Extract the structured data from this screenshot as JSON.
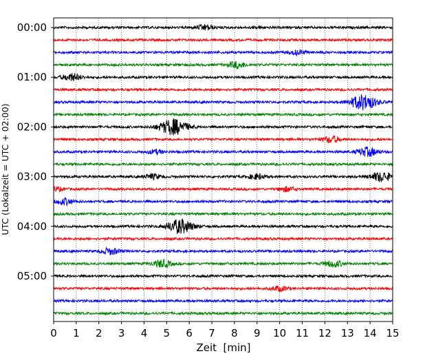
{
  "chart_data": {
    "type": "line",
    "title": "",
    "xlabel": "Zeit  [min]",
    "ylabel": "UTC (Lokalzeit = UTC + 02:00)",
    "xlim": [
      0,
      15
    ],
    "x_ticks": [
      "0",
      "1",
      "2",
      "3",
      "4",
      "5",
      "6",
      "7",
      "8",
      "9",
      "10",
      "11",
      "12",
      "13",
      "14",
      "15"
    ],
    "y_tick_labels": [
      "00:00",
      "01:00",
      "02:00",
      "03:00",
      "04:00",
      "05:00"
    ],
    "y_tick_rows": [
      0,
      4,
      8,
      12,
      16,
      20
    ],
    "grid": "vertical dotted",
    "trace_interval_minutes": 15,
    "traces_count": 24,
    "color_cycle": [
      "#000000",
      "#ff0000",
      "#0000ff",
      "#008000"
    ],
    "events": [
      {
        "row": 0,
        "t": 6.7,
        "amp": 0.32
      },
      {
        "row": 0,
        "t": 9.1,
        "amp": 0.1
      },
      {
        "row": 2,
        "t": 10.8,
        "amp": 0.26
      },
      {
        "row": 3,
        "t": 8.1,
        "amp": 0.4
      },
      {
        "row": 4,
        "t": 0.8,
        "amp": 0.45
      },
      {
        "row": 6,
        "t": 13.7,
        "amp": 0.95
      },
      {
        "row": 8,
        "t": 5.3,
        "amp": 1.0
      },
      {
        "row": 9,
        "t": 12.3,
        "amp": 0.4
      },
      {
        "row": 10,
        "t": 4.5,
        "amp": 0.25
      },
      {
        "row": 10,
        "t": 13.9,
        "amp": 0.55
      },
      {
        "row": 12,
        "t": 4.4,
        "amp": 0.32
      },
      {
        "row": 12,
        "t": 9.0,
        "amp": 0.32
      },
      {
        "row": 12,
        "t": 14.5,
        "amp": 0.6
      },
      {
        "row": 13,
        "t": 0.1,
        "amp": 0.25
      },
      {
        "row": 13,
        "t": 10.3,
        "amp": 0.28
      },
      {
        "row": 14,
        "t": 0.5,
        "amp": 0.38
      },
      {
        "row": 16,
        "t": 5.6,
        "amp": 0.9
      },
      {
        "row": 18,
        "t": 2.5,
        "amp": 0.4
      },
      {
        "row": 19,
        "t": 4.8,
        "amp": 0.45
      },
      {
        "row": 19,
        "t": 12.4,
        "amp": 0.4
      },
      {
        "row": 21,
        "t": 10.0,
        "amp": 0.3
      }
    ]
  }
}
